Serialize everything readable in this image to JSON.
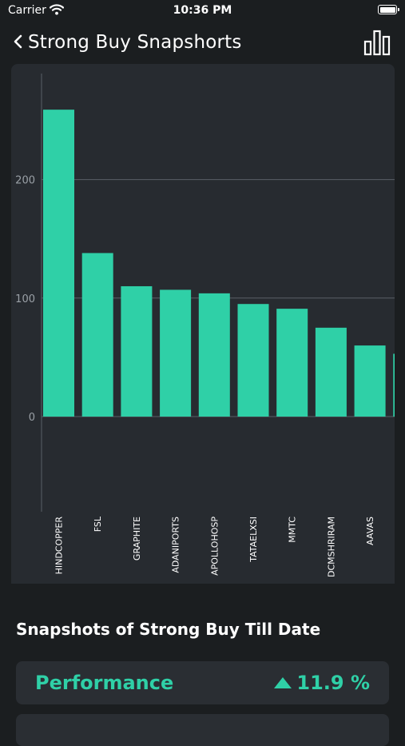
{
  "status_bar": {
    "carrier": "Carrier",
    "time": "10:36 PM"
  },
  "nav": {
    "title": "Strong Buy Snapshorts"
  },
  "section": {
    "title": "Snapshots of Strong Buy Till Date"
  },
  "performance": {
    "label": "Performance",
    "value": "11.9 %",
    "trend": "up"
  },
  "colors": {
    "accent": "#2fd0a7",
    "background": "#1b1e20",
    "card": "#272b30"
  },
  "chart_data": {
    "type": "bar",
    "categories": [
      "HINDCOPPER",
      "FSL",
      "GRAPHITE",
      "ADANIPORTS",
      "APOLLOHOSP",
      "TATAELXSI",
      "MMTC",
      "DCMSHRIRAM",
      "AAVAS",
      ""
    ],
    "values": [
      259,
      138,
      110,
      107,
      104,
      95,
      91,
      75,
      60,
      53
    ],
    "y_ticks": [
      0,
      100,
      200
    ],
    "ylim": [
      -80,
      290
    ],
    "grid": true,
    "color": "#2fd0a7"
  }
}
